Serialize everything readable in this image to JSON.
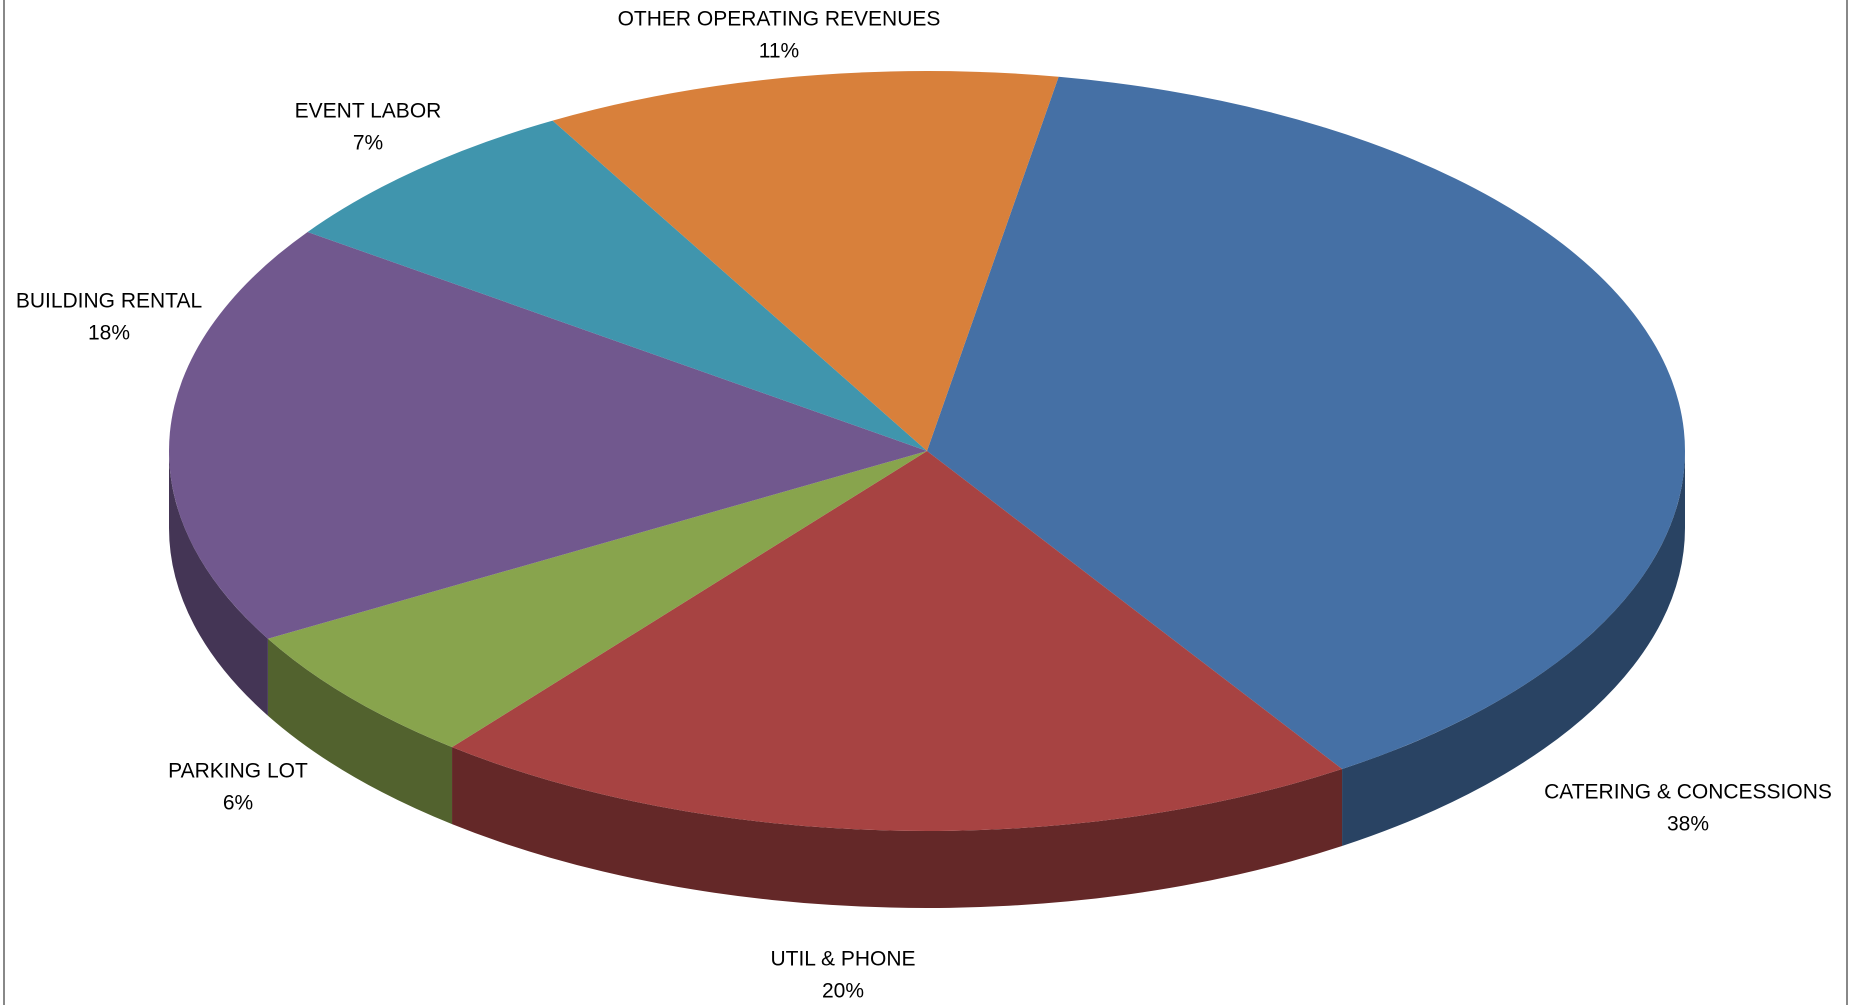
{
  "chart_data": {
    "type": "pie",
    "categories": [
      "CATERING & CONCESSIONS",
      "UTIL & PHONE",
      "PARKING LOT",
      "BUILDING RENTAL",
      "EVENT LABOR",
      "OTHER OPERATING REVENUES"
    ],
    "values": [
      38,
      20,
      6,
      18,
      7,
      11
    ],
    "value_labels": [
      "38%",
      "20%",
      "6%",
      "18%",
      "7%",
      "11%"
    ],
    "colors": [
      "#4570a5",
      "#a74342",
      "#88a44d",
      "#71588e",
      "#4095ad",
      "#d8803b"
    ]
  }
}
